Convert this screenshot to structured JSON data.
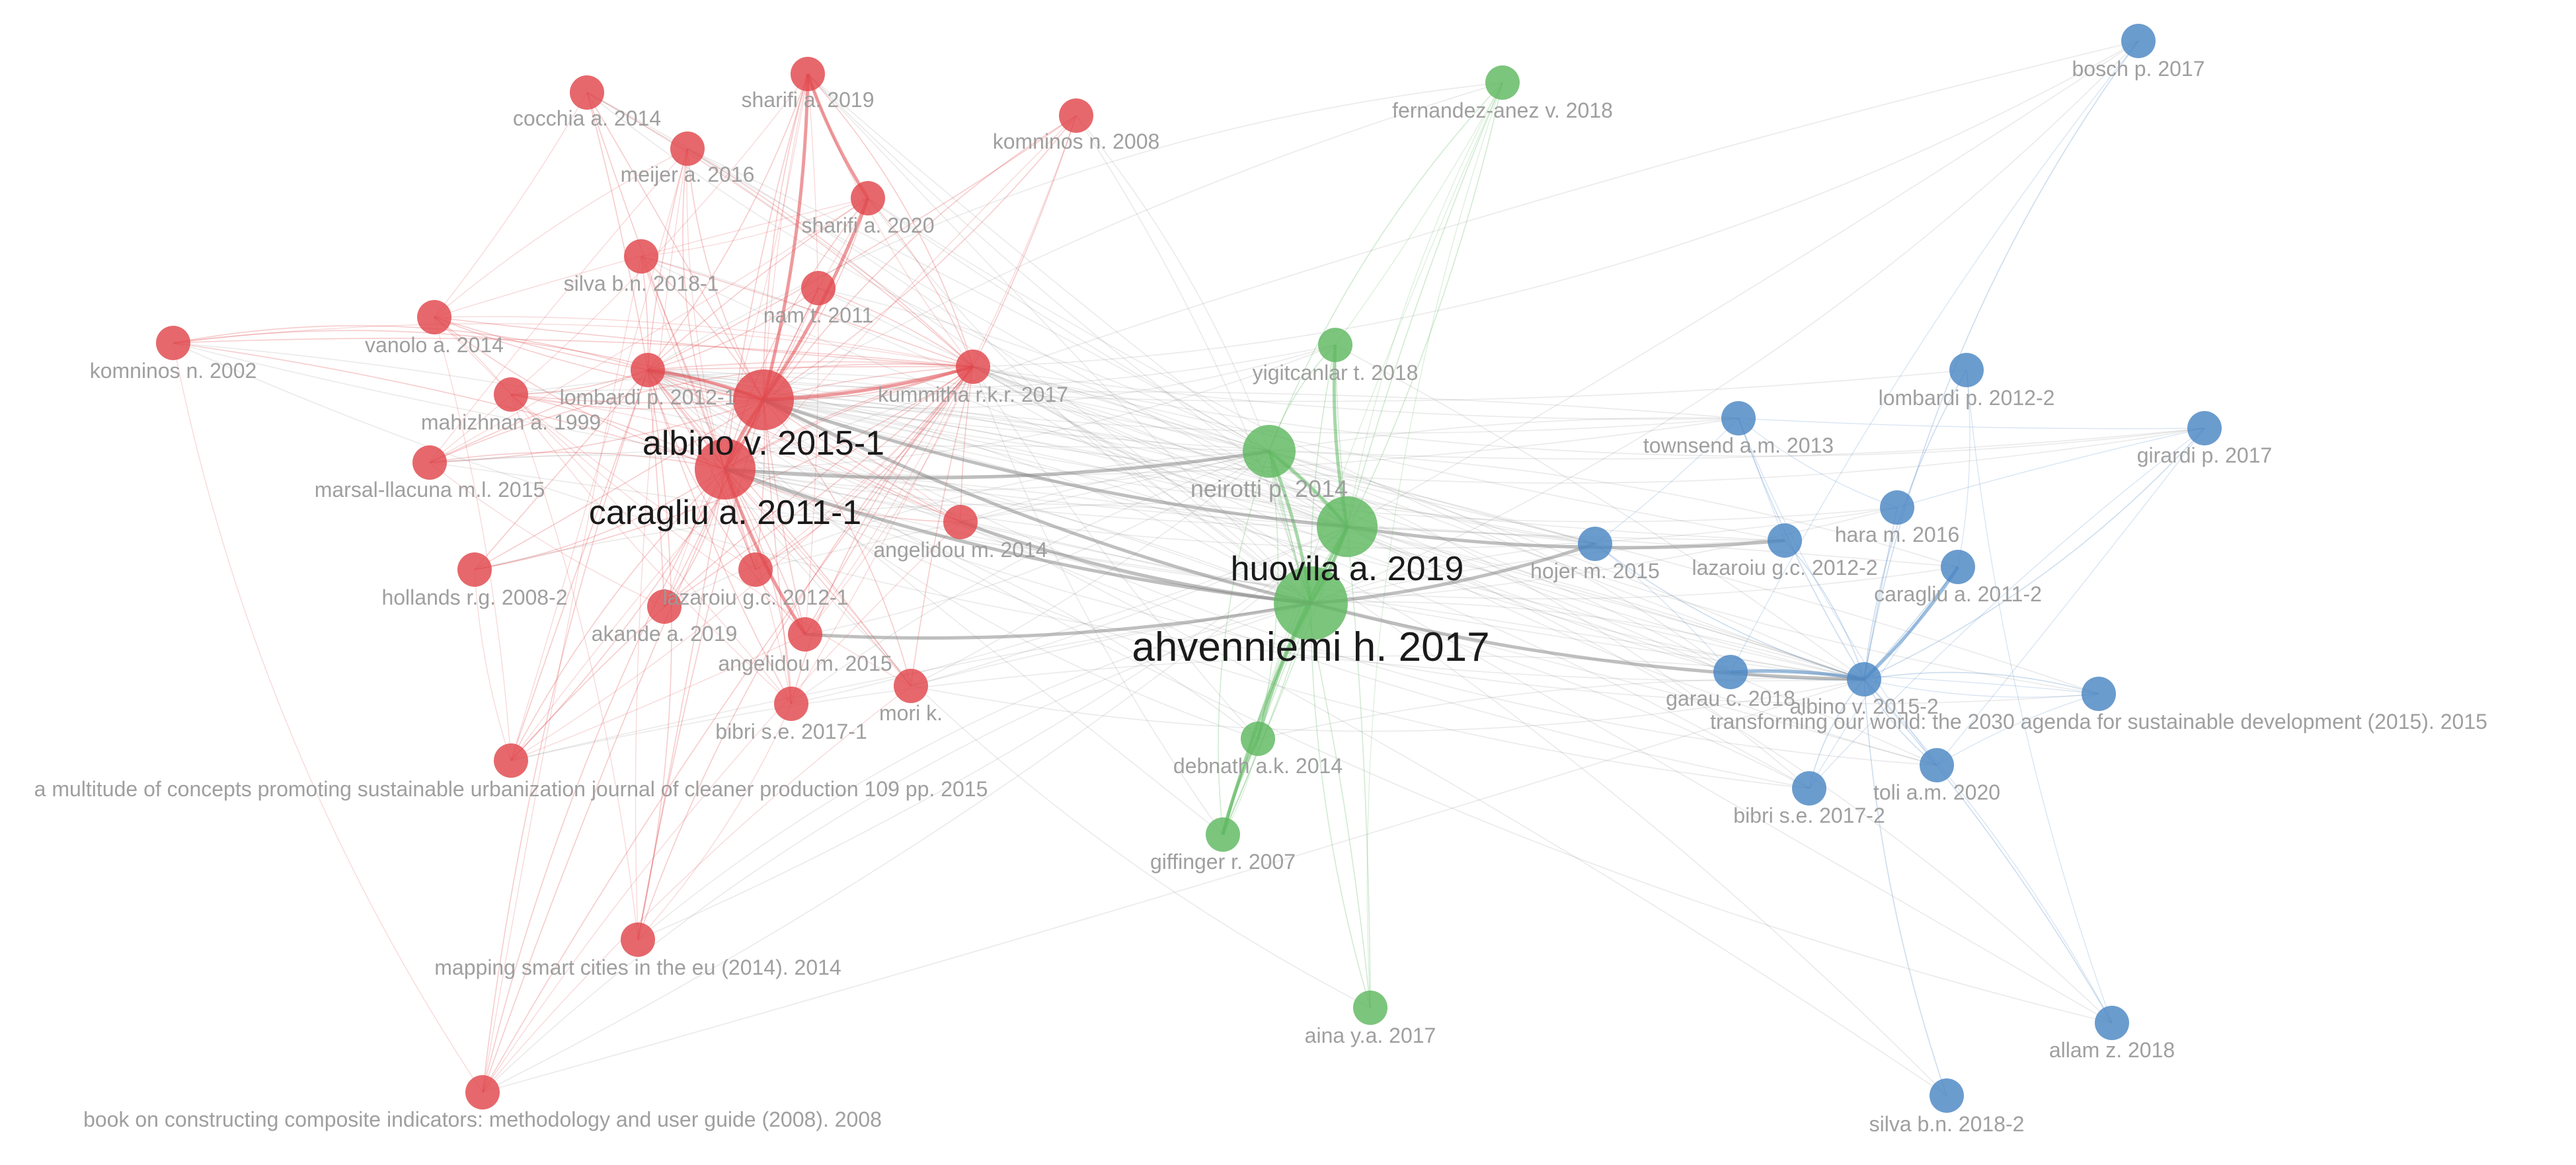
{
  "colors": {
    "red": "#e0474c",
    "green": "#5fb860",
    "blue": "#4a86c3",
    "gray_edge": "#8a8a8a",
    "label_small": "#9a9a9a",
    "label_big": "#1a1a1a"
  },
  "clusters": [
    {
      "id": "red",
      "color_key": "red"
    },
    {
      "id": "green",
      "color_key": "green"
    },
    {
      "id": "blue",
      "color_key": "blue"
    }
  ],
  "nodes": [
    {
      "id": "cocchia",
      "label": "cocchia a. 2014",
      "cluster": "red",
      "weight": 1
    },
    {
      "id": "sharifi2019",
      "label": "sharifi a. 2019",
      "cluster": "red",
      "weight": 1
    },
    {
      "id": "meijer",
      "label": "meijer a. 2016",
      "cluster": "red",
      "weight": 1
    },
    {
      "id": "komninos2008",
      "label": "komninos n. 2008",
      "cluster": "red",
      "weight": 1
    },
    {
      "id": "sharifi2020",
      "label": "sharifi a. 2020",
      "cluster": "red",
      "weight": 1
    },
    {
      "id": "silva2018_1",
      "label": "silva b.n. 2018-1",
      "cluster": "red",
      "weight": 1
    },
    {
      "id": "nam",
      "label": "nam t. 2011",
      "cluster": "red",
      "weight": 1
    },
    {
      "id": "vanolo",
      "label": "vanolo a. 2014",
      "cluster": "red",
      "weight": 1
    },
    {
      "id": "komninos2002",
      "label": "komninos n. 2002",
      "cluster": "red",
      "weight": 1
    },
    {
      "id": "lombardi1",
      "label": "lombardi p. 2012-1",
      "cluster": "red",
      "weight": 1
    },
    {
      "id": "kummitha",
      "label": "kummitha r.k.r. 2017",
      "cluster": "red",
      "weight": 1
    },
    {
      "id": "mahizhnan",
      "label": "mahizhnan a. 1999",
      "cluster": "red",
      "weight": 1
    },
    {
      "id": "albino1",
      "label": "albino v. 2015-1",
      "cluster": "red",
      "weight": 3
    },
    {
      "id": "marsal",
      "label": "marsal-llacuna m.l. 2015",
      "cluster": "red",
      "weight": 1
    },
    {
      "id": "caragliu1",
      "label": "caragliu a. 2011-1",
      "cluster": "red",
      "weight": 3
    },
    {
      "id": "angelidou2014",
      "label": "angelidou m. 2014",
      "cluster": "red",
      "weight": 1
    },
    {
      "id": "hollands",
      "label": "hollands r.g. 2008-2",
      "cluster": "red",
      "weight": 1
    },
    {
      "id": "lazaroiu1",
      "label": "lazaroiu g.c. 2012-1",
      "cluster": "red",
      "weight": 1
    },
    {
      "id": "akande",
      "label": "akande a. 2019",
      "cluster": "red",
      "weight": 1
    },
    {
      "id": "angelidou2015",
      "label": "angelidou m. 2015",
      "cluster": "red",
      "weight": 1
    },
    {
      "id": "bibri1",
      "label": "bibri s.e. 2017-1",
      "cluster": "red",
      "weight": 1
    },
    {
      "id": "mori",
      "label": "mori k.",
      "cluster": "red",
      "weight": 1
    },
    {
      "id": "multitude",
      "label": "a multitude of concepts promoting sustainable urbanization journal of cleaner production 109 pp. 2015",
      "cluster": "red",
      "weight": 1
    },
    {
      "id": "mapping",
      "label": "mapping smart cities in the eu (2014). 2014",
      "cluster": "red",
      "weight": 1
    },
    {
      "id": "book",
      "label": "book on constructing composite indicators: methodology and user guide (2008). 2008",
      "cluster": "red",
      "weight": 1
    },
    {
      "id": "fernandez",
      "label": "fernandez-anez v. 2018",
      "cluster": "green",
      "weight": 1
    },
    {
      "id": "yigitcanlar",
      "label": "yigitcanlar t. 2018",
      "cluster": "green",
      "weight": 1
    },
    {
      "id": "neirotti",
      "label": "neirotti p. 2014",
      "cluster": "green",
      "weight": 2
    },
    {
      "id": "huovila",
      "label": "huovila a. 2019",
      "cluster": "green",
      "weight": 3
    },
    {
      "id": "ahvenniemi",
      "label": "ahvenniemi h. 2017",
      "cluster": "green",
      "weight": 4
    },
    {
      "id": "debnath",
      "label": "debnath a.k. 2014",
      "cluster": "green",
      "weight": 1
    },
    {
      "id": "giffinger",
      "label": "giffinger r. 2007",
      "cluster": "green",
      "weight": 1
    },
    {
      "id": "aina",
      "label": "aina y.a. 2017",
      "cluster": "green",
      "weight": 1
    },
    {
      "id": "bosch",
      "label": "bosch p. 2017",
      "cluster": "blue",
      "weight": 1
    },
    {
      "id": "lombardi2",
      "label": "lombardi p. 2012-2",
      "cluster": "blue",
      "weight": 1
    },
    {
      "id": "townsend",
      "label": "townsend a.m. 2013",
      "cluster": "blue",
      "weight": 1
    },
    {
      "id": "girardi",
      "label": "girardi p. 2017",
      "cluster": "blue",
      "weight": 1
    },
    {
      "id": "hara",
      "label": "hara m. 2016",
      "cluster": "blue",
      "weight": 1
    },
    {
      "id": "hojer",
      "label": "hojer m. 2015",
      "cluster": "blue",
      "weight": 1
    },
    {
      "id": "lazaroiu2",
      "label": "lazaroiu g.c. 2012-2",
      "cluster": "blue",
      "weight": 1
    },
    {
      "id": "caragliu2",
      "label": "caragliu a. 2011-2",
      "cluster": "blue",
      "weight": 1
    },
    {
      "id": "garau",
      "label": "garau c. 2018",
      "cluster": "blue",
      "weight": 1
    },
    {
      "id": "albino2",
      "label": "albino v. 2015-2",
      "cluster": "blue",
      "weight": 1
    },
    {
      "id": "transforming",
      "label": "transforming our world: the 2030 agenda for sustainable development (2015). 2015",
      "cluster": "blue",
      "weight": 1
    },
    {
      "id": "bibri2",
      "label": "bibri s.e. 2017-2",
      "cluster": "blue",
      "weight": 1
    },
    {
      "id": "toli",
      "label": "toli a.m. 2020",
      "cluster": "blue",
      "weight": 1
    },
    {
      "id": "allam",
      "label": "allam z. 2018",
      "cluster": "blue",
      "weight": 1
    },
    {
      "id": "silva2018_2",
      "label": "silva b.n. 2018-2",
      "cluster": "blue",
      "weight": 1
    }
  ],
  "strong_links": [
    [
      "ahvenniemi",
      "huovila"
    ],
    [
      "huovila",
      "neirotti"
    ],
    [
      "ahvenniemi",
      "neirotti"
    ],
    [
      "ahvenniemi",
      "debnath"
    ],
    [
      "debnath",
      "giffinger"
    ],
    [
      "huovila",
      "giffinger"
    ],
    [
      "yigitcanlar",
      "huovila"
    ],
    [
      "albino1",
      "caragliu1"
    ],
    [
      "albino1",
      "lombardi1"
    ],
    [
      "caragliu1",
      "angelidou2015"
    ],
    [
      "albino1",
      "sharifi2019"
    ],
    [
      "albino1",
      "sharifi2020"
    ],
    [
      "sharifi2019",
      "sharifi2020"
    ],
    [
      "albino1",
      "kummitha"
    ],
    [
      "caragliu1",
      "ahvenniemi"
    ],
    [
      "albino1",
      "ahvenniemi"
    ],
    [
      "albino1",
      "huovila"
    ],
    [
      "caragliu1",
      "neirotti"
    ],
    [
      "angelidou2014",
      "ahvenniemi"
    ],
    [
      "angelidou2015",
      "ahvenniemi"
    ],
    [
      "albino2",
      "caragliu2"
    ],
    [
      "albino2",
      "garau"
    ],
    [
      "ahvenniemi",
      "hojer"
    ],
    [
      "huovila",
      "lazaroiu2"
    ],
    [
      "ahvenniemi",
      "albino2"
    ]
  ]
}
